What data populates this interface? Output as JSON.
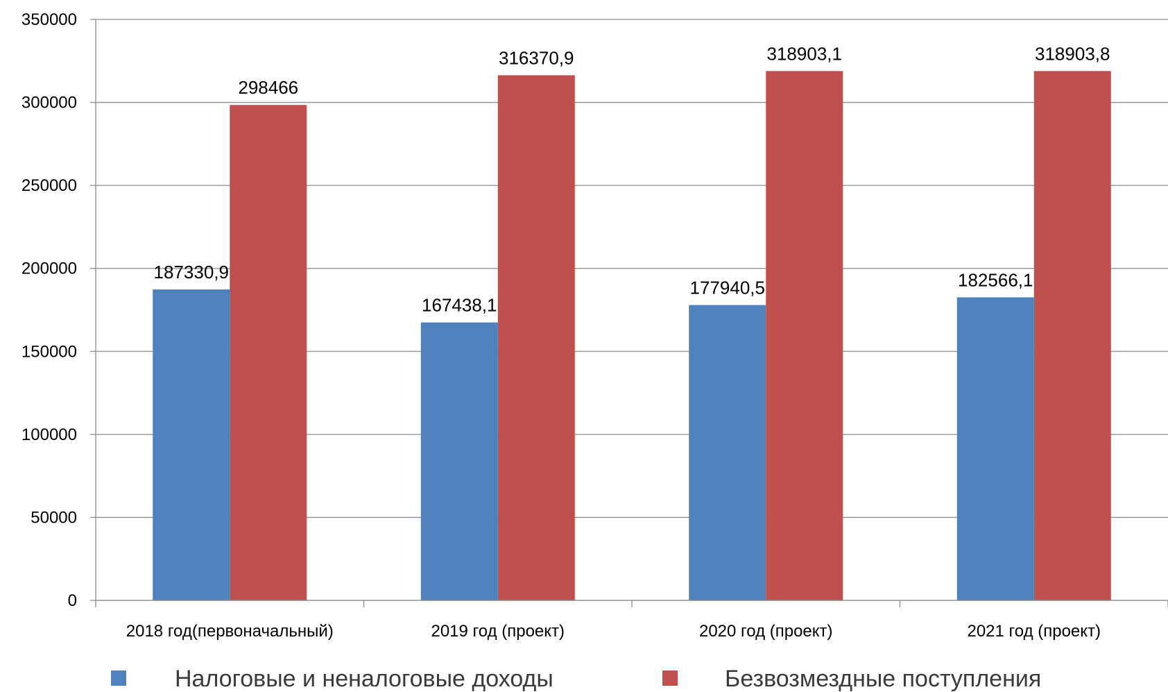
{
  "chart_data": {
    "type": "bar",
    "categories": [
      "2018 год(первоначальный)",
      "2019 год (проект)",
      "2020 год (проект)",
      "2021 год (проект)"
    ],
    "series": [
      {
        "name": "Налоговые и неналоговые доходы",
        "color": "#4f81bd",
        "values": [
          187330.9,
          167438.1,
          177940.5,
          182566.1
        ],
        "labels": [
          "187330,9",
          "167438,1",
          "177940,5",
          "182566,1"
        ]
      },
      {
        "name": "Безвозмездные поступления",
        "color": "#c0504d",
        "values": [
          298466,
          316370.9,
          318903.1,
          318903.8
        ],
        "labels": [
          "298466",
          "316370,9",
          "318903,1",
          "318903,8"
        ]
      }
    ],
    "ylim": [
      0,
      350000
    ],
    "yticks": [
      0,
      50000,
      100000,
      150000,
      200000,
      250000,
      300000,
      350000
    ],
    "grid": true,
    "legend": "bottom"
  }
}
